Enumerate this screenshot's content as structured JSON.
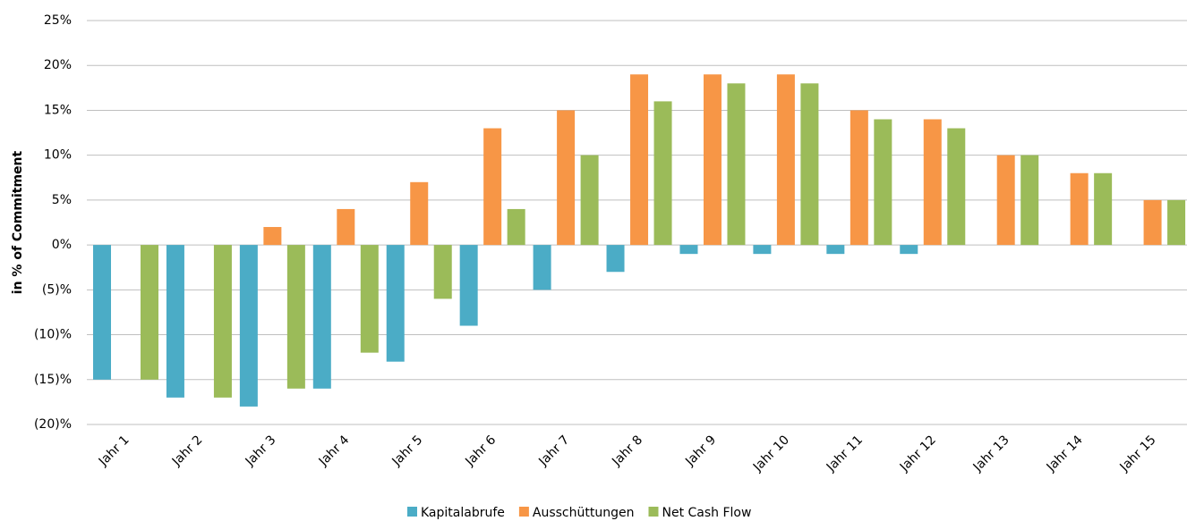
{
  "chart_data": {
    "type": "bar",
    "y_label": "in % of Commitment",
    "categories": [
      "Jahr 1",
      "Jahr 2",
      "Jahr 3",
      "Jahr 4",
      "Jahr 5",
      "Jahr 6",
      "Jahr 7",
      "Jahr 8",
      "Jahr 9",
      "Jahr 10",
      "Jahr 11",
      "Jahr 12",
      "Jahr 13",
      "Jahr 14",
      "Jahr 15"
    ],
    "series": [
      {
        "name": "Kapitalabrufe",
        "color": "#4bacc6",
        "values": [
          -15,
          -17,
          -18,
          -16,
          -13,
          -9,
          -5,
          -3,
          -1,
          -1,
          -1,
          -1,
          0,
          0,
          0
        ]
      },
      {
        "name": "Ausschüttungen",
        "color": "#f79646",
        "values": [
          0,
          0,
          2,
          4,
          7,
          13,
          15,
          19,
          19,
          19,
          15,
          14,
          10,
          8,
          5
        ]
      },
      {
        "name": "Net Cash Flow",
        "color": "#9bbb59",
        "values": [
          -15,
          -17,
          -16,
          -12,
          -6,
          4,
          10,
          16,
          18,
          18,
          14,
          13,
          10,
          8,
          5
        ]
      }
    ],
    "ylim": [
      -20,
      25
    ],
    "yticks": [
      {
        "value": -20,
        "label": "(20)%"
      },
      {
        "value": -15,
        "label": "(15)%"
      },
      {
        "value": -10,
        "label": "(10)%"
      },
      {
        "value": -5,
        "label": "(5)%"
      },
      {
        "value": 0,
        "label": "0%"
      },
      {
        "value": 5,
        "label": "5%"
      },
      {
        "value": 10,
        "label": "10%"
      },
      {
        "value": 15,
        "label": "15%"
      },
      {
        "value": 20,
        "label": "20%"
      },
      {
        "value": 25,
        "label": "25%"
      }
    ],
    "grid": true,
    "legend": "bottom"
  }
}
